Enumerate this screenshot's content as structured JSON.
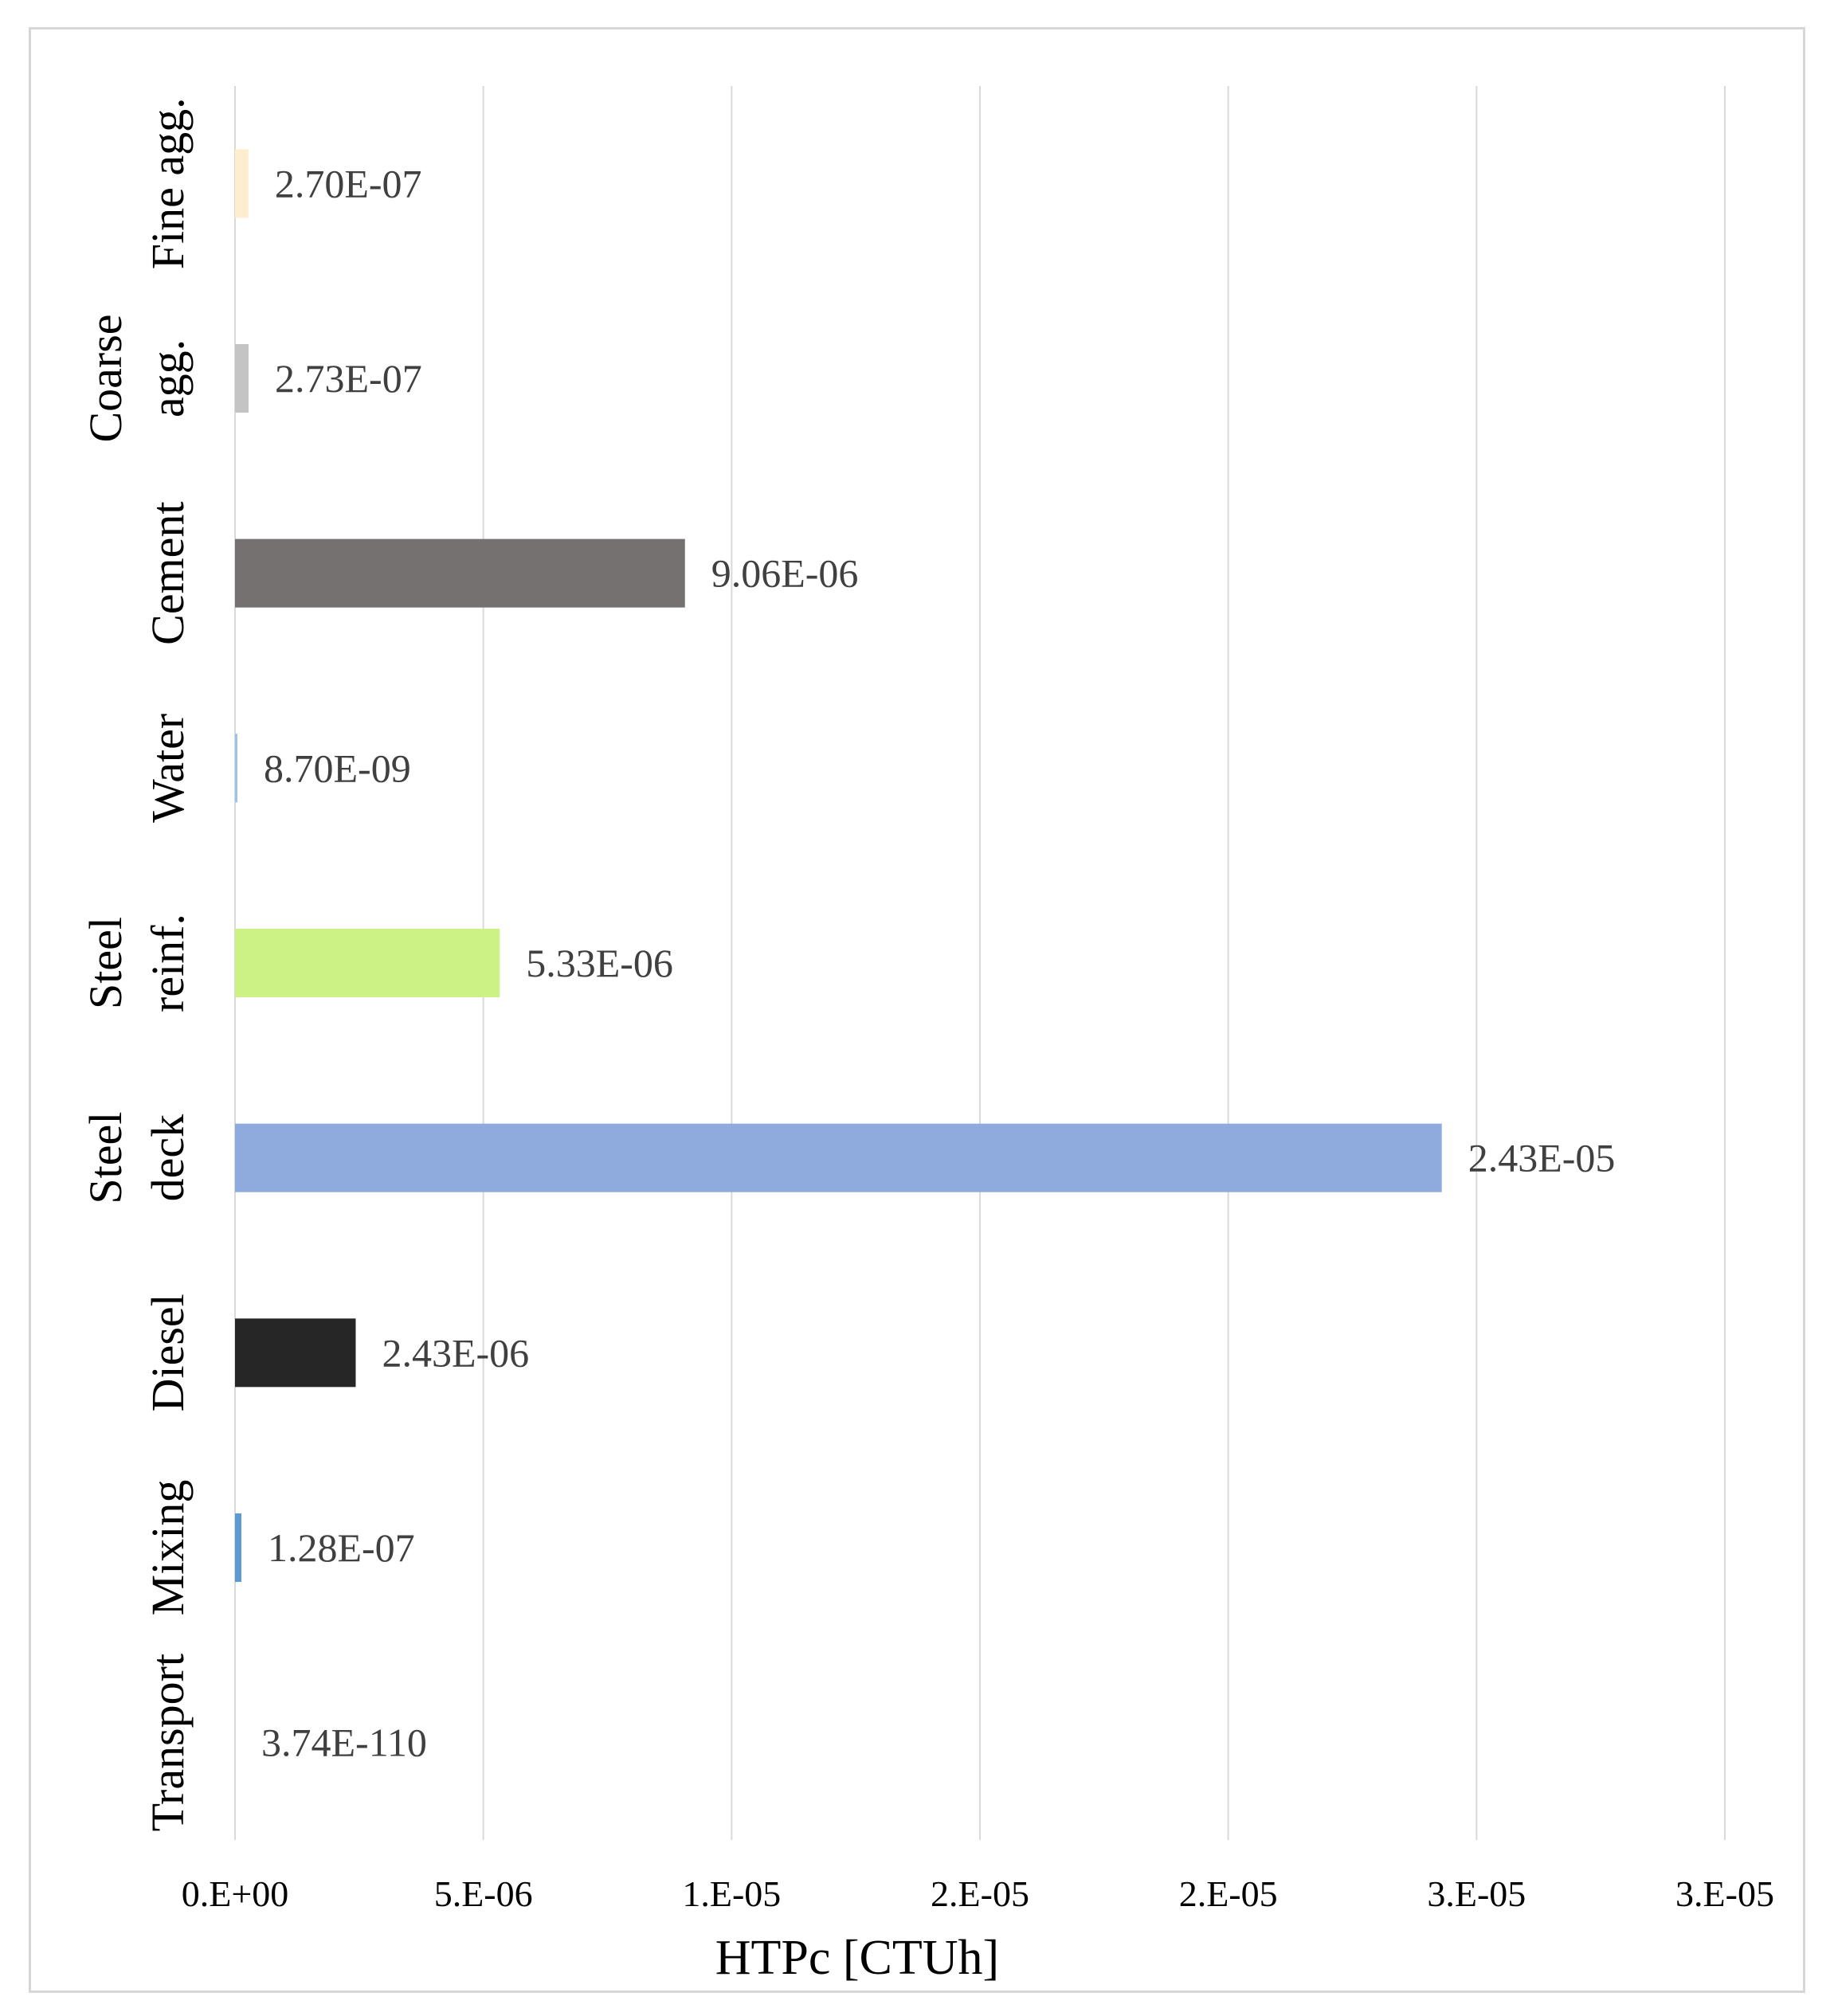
{
  "chart_data": {
    "type": "bar",
    "orientation": "horizontal",
    "title": "",
    "xlabel": "HTPc [CTUh]",
    "ylabel": "",
    "xlim": [
      0,
      3e-05
    ],
    "grid": true,
    "x_ticks": [
      "0.E+00",
      "5.E-06",
      "1.E-05",
      "2.E-05",
      "2.E-05",
      "3.E-05",
      "3.E-05"
    ],
    "categories": [
      {
        "label_lines": [
          "Fine agg."
        ],
        "value": 2.7e-07,
        "value_label": "2.70E-07",
        "color": "#ffeecd"
      },
      {
        "label_lines": [
          "Coarse",
          "agg."
        ],
        "value": 2.73e-07,
        "value_label": "2.73E-07",
        "color": "#c4c4c4"
      },
      {
        "label_lines": [
          "Cement"
        ],
        "value": 9.06e-06,
        "value_label": "9.06E-06",
        "color": "#757170"
      },
      {
        "label_lines": [
          "Water"
        ],
        "value": 8.7e-09,
        "value_label": "8.70E-09",
        "color": "#9dc3e6"
      },
      {
        "label_lines": [
          "Steel",
          "reinf."
        ],
        "value": 5.33e-06,
        "value_label": "5.33E-06",
        "color": "#ccf285"
      },
      {
        "label_lines": [
          "Steel",
          "deck"
        ],
        "value": 2.43e-05,
        "value_label": "2.43E-05",
        "color": "#8faadc"
      },
      {
        "label_lines": [
          "Diesel"
        ],
        "value": 2.43e-06,
        "value_label": "2.43E-06",
        "color": "#262626"
      },
      {
        "label_lines": [
          "Mixing"
        ],
        "value": 1.28e-07,
        "value_label": "1.28E-07",
        "color": "#5b9bd5"
      },
      {
        "label_lines": [
          "Transport"
        ],
        "value": 3.74e-110,
        "value_label": "3.74E-110",
        "color": "#5b9bd5"
      }
    ]
  }
}
